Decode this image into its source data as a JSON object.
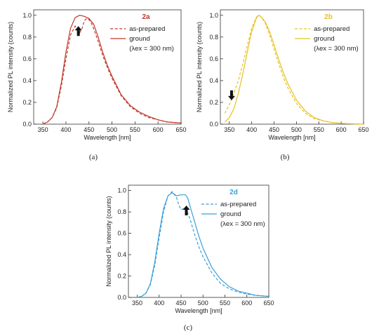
{
  "panels": [
    {
      "caption": "(a)",
      "tag": "2a",
      "color": "#c0392b",
      "tag_color": "#c0392b",
      "arrow": "up",
      "legend": [
        "as-prepared",
        "ground",
        "(λex = 300 nm)"
      ]
    },
    {
      "caption": "(b)",
      "tag": "2b",
      "color": "#e6c21e",
      "tag_color": "#e6c21e",
      "arrow": "down",
      "legend": [
        "as-prepared",
        "ground",
        "(λex = 300 nm)"
      ]
    },
    {
      "caption": "(c)",
      "tag": "2d",
      "color": "#3aa0d8",
      "tag_color": "#3aa0d8",
      "arrow": "up",
      "legend": [
        "as-prepared",
        "ground",
        "(λex = 300 nm)"
      ]
    }
  ],
  "chart_data": [
    {
      "type": "line",
      "title": "2a",
      "xlabel": "Wavelength [nm]",
      "ylabel": "Normalized PL intensity (counts)",
      "xlim": [
        330,
        650
      ],
      "ylim": [
        0,
        1.05
      ],
      "xticks": [
        350,
        400,
        450,
        500,
        550,
        600,
        650
      ],
      "yticks": [
        0.0,
        0.2,
        0.4,
        0.6,
        0.8,
        1.0
      ],
      "ytick_labels": [
        "0.0",
        "0.2",
        "0.4",
        "0.6",
        "0.8",
        "1.0"
      ],
      "series": [
        {
          "name": "as-prepared",
          "style": "dashed",
          "x": [
            350,
            360,
            370,
            380,
            390,
            400,
            410,
            420,
            425,
            430,
            435,
            440,
            445,
            450,
            455,
            460,
            470,
            480,
            490,
            500,
            520,
            540,
            560,
            580,
            600,
            620,
            650
          ],
          "y": [
            0.0,
            0.02,
            0.06,
            0.15,
            0.35,
            0.6,
            0.82,
            0.9,
            0.86,
            0.84,
            0.88,
            0.95,
            0.97,
            0.96,
            0.93,
            0.88,
            0.76,
            0.63,
            0.52,
            0.42,
            0.26,
            0.16,
            0.1,
            0.06,
            0.04,
            0.02,
            0.01
          ]
        },
        {
          "name": "ground",
          "style": "solid",
          "x": [
            350,
            360,
            370,
            380,
            390,
            400,
            410,
            420,
            430,
            440,
            450,
            460,
            470,
            480,
            490,
            500,
            520,
            540,
            560,
            580,
            600,
            620,
            650
          ],
          "y": [
            0.0,
            0.02,
            0.06,
            0.16,
            0.38,
            0.66,
            0.88,
            0.98,
            1.0,
            0.99,
            0.97,
            0.92,
            0.8,
            0.66,
            0.54,
            0.44,
            0.27,
            0.17,
            0.11,
            0.07,
            0.04,
            0.02,
            0.01
          ]
        }
      ]
    },
    {
      "type": "line",
      "title": "2b",
      "xlabel": "Wavelength [nm]",
      "ylabel": "Normalized PL intensity (counts)",
      "xlim": [
        330,
        650
      ],
      "ylim": [
        0,
        1.05
      ],
      "xticks": [
        350,
        400,
        450,
        500,
        550,
        600,
        650
      ],
      "yticks": [
        0.0,
        0.2,
        0.4,
        0.6,
        0.8,
        1.0
      ],
      "ytick_labels": [
        "0.0",
        "0.2",
        "0.4",
        "0.6",
        "0.8",
        "1.0"
      ],
      "series": [
        {
          "name": "as-prepared",
          "style": "dashed",
          "x": [
            340,
            350,
            360,
            370,
            380,
            390,
            400,
            410,
            415,
            420,
            430,
            440,
            450,
            460,
            470,
            480,
            500,
            520,
            540,
            560,
            580,
            600,
            620,
            650
          ],
          "y": [
            0.1,
            0.18,
            0.28,
            0.4,
            0.55,
            0.72,
            0.88,
            0.98,
            1.0,
            0.99,
            0.93,
            0.82,
            0.69,
            0.56,
            0.44,
            0.34,
            0.19,
            0.1,
            0.05,
            0.03,
            0.015,
            0.008,
            0.004,
            0.0
          ]
        },
        {
          "name": "ground",
          "style": "solid",
          "x": [
            340,
            350,
            360,
            370,
            380,
            390,
            400,
            410,
            415,
            420,
            430,
            440,
            450,
            460,
            470,
            480,
            500,
            520,
            540,
            560,
            580,
            600,
            620,
            650
          ],
          "y": [
            0.02,
            0.06,
            0.14,
            0.28,
            0.46,
            0.66,
            0.85,
            0.97,
            1.0,
            0.99,
            0.94,
            0.85,
            0.73,
            0.6,
            0.48,
            0.38,
            0.22,
            0.12,
            0.06,
            0.03,
            0.015,
            0.008,
            0.004,
            0.0
          ]
        }
      ]
    },
    {
      "type": "line",
      "title": "2d",
      "xlabel": "Wavelength [nm]",
      "ylabel": "Normalized PL intensity (counts)",
      "xlim": [
        330,
        650
      ],
      "ylim": [
        0,
        1.05
      ],
      "xticks": [
        350,
        400,
        450,
        500,
        550,
        600,
        650
      ],
      "yticks": [
        0.0,
        0.2,
        0.4,
        0.6,
        0.8,
        1.0
      ],
      "ytick_labels": [
        "0.0",
        "0.2",
        "0.4",
        "0.6",
        "0.8",
        "1.0"
      ],
      "series": [
        {
          "name": "as-prepared",
          "style": "dashed",
          "x": [
            350,
            360,
            370,
            380,
            390,
            400,
            410,
            420,
            430,
            440,
            445,
            450,
            455,
            460,
            470,
            480,
            490,
            500,
            520,
            540,
            560,
            580,
            600,
            620,
            650
          ],
          "y": [
            0.0,
            0.01,
            0.04,
            0.12,
            0.3,
            0.56,
            0.8,
            0.95,
            0.99,
            0.93,
            0.86,
            0.82,
            0.83,
            0.84,
            0.74,
            0.6,
            0.48,
            0.38,
            0.23,
            0.13,
            0.08,
            0.05,
            0.03,
            0.02,
            0.01
          ]
        },
        {
          "name": "ground",
          "style": "solid",
          "x": [
            350,
            360,
            370,
            380,
            390,
            400,
            410,
            420,
            430,
            440,
            450,
            460,
            465,
            470,
            480,
            490,
            500,
            520,
            540,
            560,
            580,
            600,
            620,
            650
          ],
          "y": [
            0.0,
            0.01,
            0.04,
            0.13,
            0.33,
            0.6,
            0.83,
            0.95,
            0.98,
            0.95,
            0.96,
            0.96,
            0.93,
            0.86,
            0.72,
            0.58,
            0.46,
            0.28,
            0.17,
            0.1,
            0.06,
            0.04,
            0.02,
            0.01
          ]
        }
      ]
    }
  ]
}
